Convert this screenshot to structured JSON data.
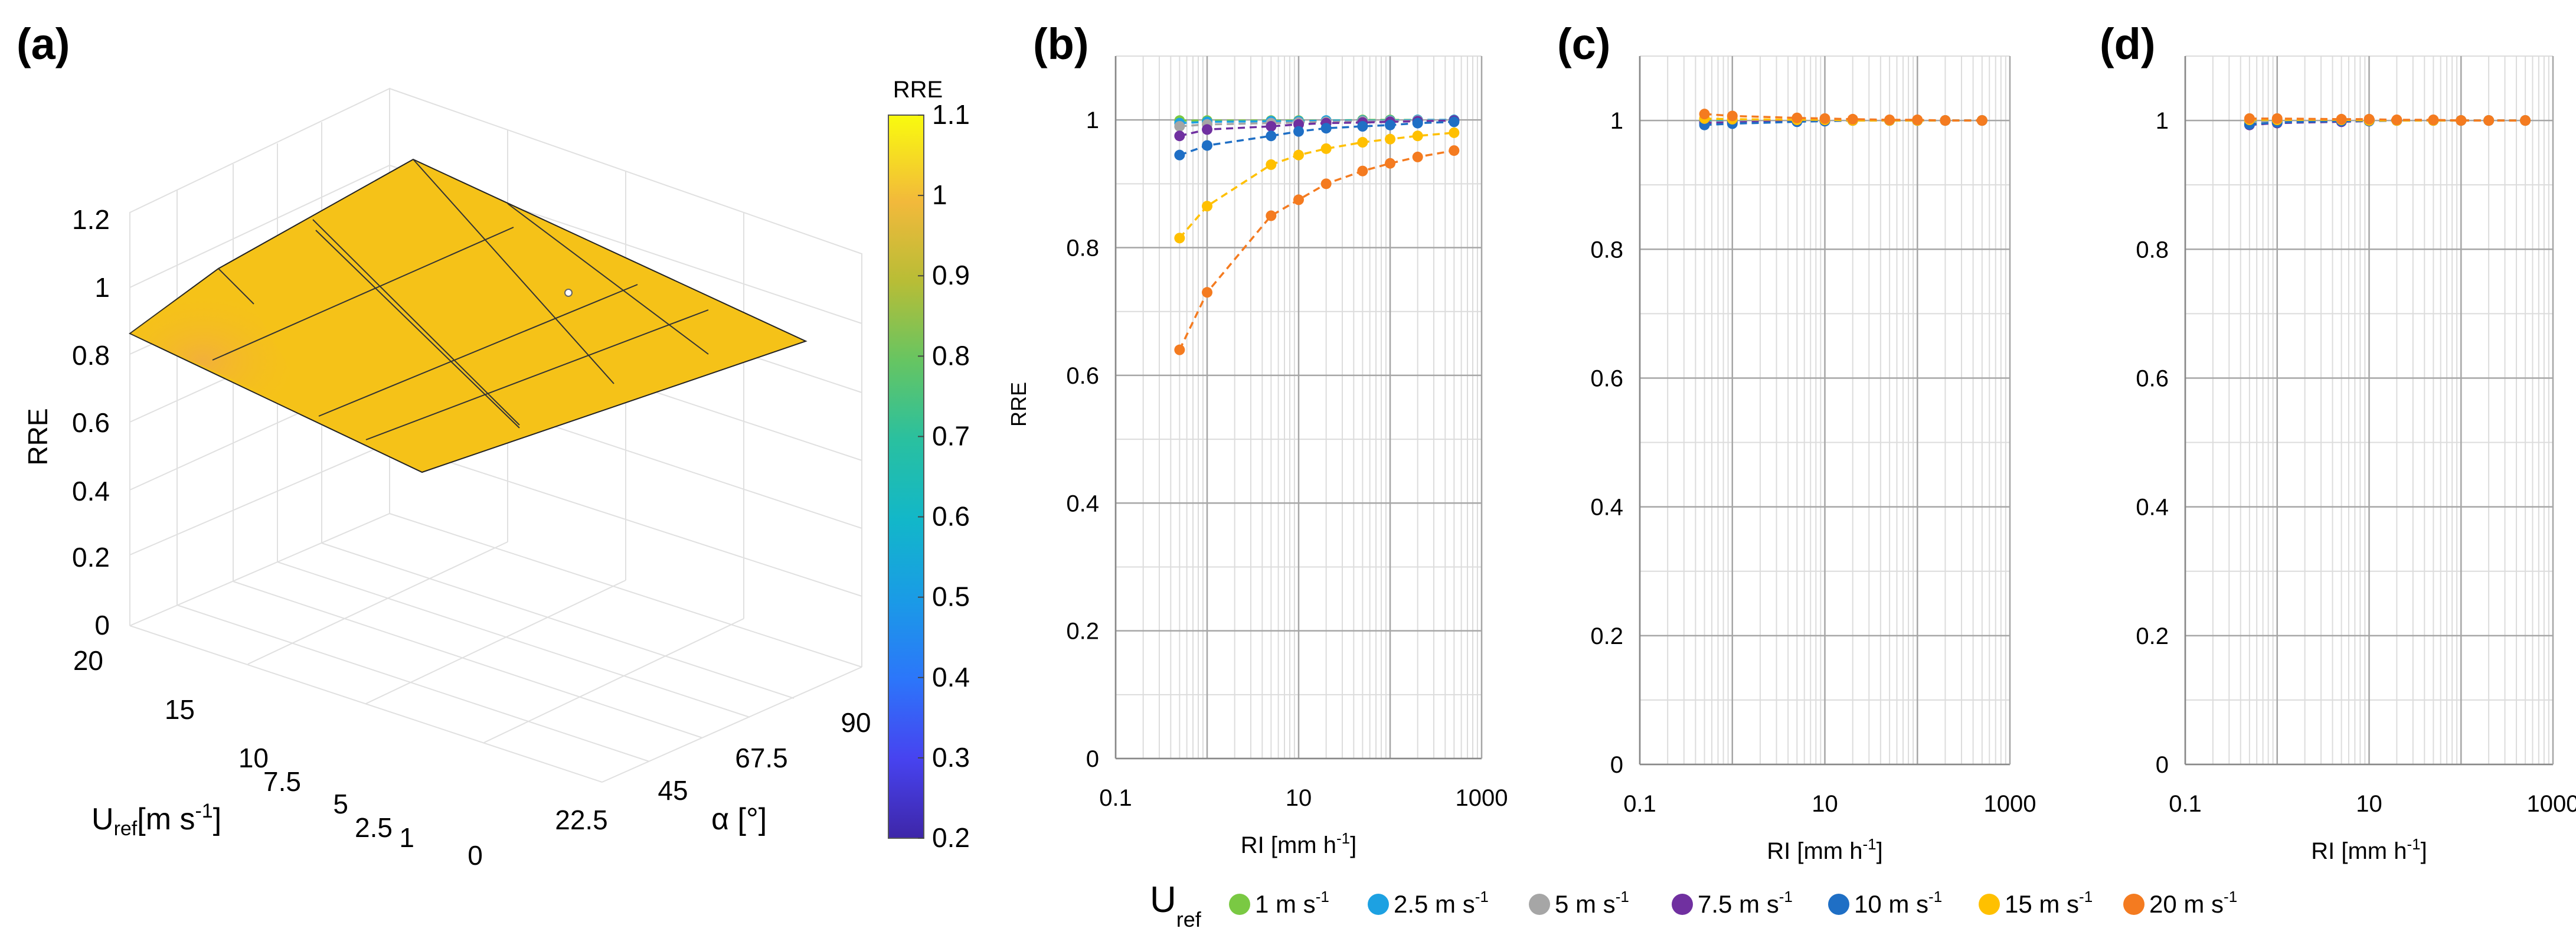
{
  "chart_data": [
    {
      "panel": "(a)",
      "type": "surface3d",
      "zlabel": "RRE",
      "ylabel": "U",
      "ylabel_sub": "ref",
      "ylabel_units": "[m  s",
      "ylabel_exp": "-1",
      "ylabel_close": "]",
      "xlabel": "α  [°]",
      "z_ticks": [
        "0",
        "0.2",
        "0.4",
        "0.6",
        "0.8",
        "1",
        "1.2"
      ],
      "u_ticks": [
        "20",
        "15",
        "10",
        "7.5",
        "5",
        "2.5",
        "1"
      ],
      "alpha_ticks": [
        "0",
        "22.5",
        "45",
        "67.5",
        "90"
      ],
      "surface_corner_values": {
        "u1_a0": 1.0,
        "u20_a0": 0.87,
        "u1_a90": 1.0,
        "u20_a90": 1.0
      },
      "colorbar": {
        "title": "RRE",
        "range": [
          0.2,
          1.1
        ],
        "ticks": [
          "1.1",
          "1",
          "0.9",
          "0.8",
          "0.7",
          "0.6",
          "0.5",
          "0.4",
          "0.3",
          "0.2"
        ]
      }
    },
    {
      "panel": "(b)",
      "type": "line",
      "xscale": "log",
      "xlim": [
        0.1,
        1000
      ],
      "ylim": [
        0,
        1.1
      ],
      "ylabel": "RRE",
      "xlabel": "RI [mm h",
      "xlabel_exp": "-1",
      "xlabel_close": "]",
      "x_ticks": [
        "0.1",
        "10",
        "1000"
      ],
      "y_ticks": [
        "0",
        "0.2",
        "0.4",
        "0.6",
        "0.8",
        "1"
      ],
      "x": [
        0.5,
        1,
        5,
        10,
        20,
        50,
        100,
        200,
        500
      ],
      "series": [
        {
          "name": "1 m s-1",
          "values": [
            0.999,
            0.999,
            0.999,
            0.999,
            0.999,
            1.0,
            1.0,
            1.0,
            1.0
          ]
        },
        {
          "name": "2.5 m s-1",
          "values": [
            0.995,
            0.997,
            0.998,
            0.998,
            0.999,
            0.999,
            0.999,
            1.0,
            1.0
          ]
        },
        {
          "name": "5 m s-1",
          "values": [
            0.99,
            0.993,
            0.995,
            0.996,
            0.997,
            0.998,
            0.998,
            0.999,
            0.999
          ]
        },
        {
          "name": "7.5 m s-1",
          "values": [
            0.975,
            0.985,
            0.99,
            0.993,
            0.995,
            0.996,
            0.997,
            0.998,
            0.999
          ]
        },
        {
          "name": "10 m s-1",
          "values": [
            0.945,
            0.96,
            0.975,
            0.982,
            0.987,
            0.99,
            0.992,
            0.995,
            0.997
          ]
        },
        {
          "name": "15 m s-1",
          "values": [
            0.815,
            0.865,
            0.93,
            0.945,
            0.955,
            0.965,
            0.97,
            0.975,
            0.98
          ]
        },
        {
          "name": "20 m s-1",
          "values": [
            0.64,
            0.73,
            0.85,
            0.875,
            0.9,
            0.92,
            0.932,
            0.942,
            0.952
          ]
        }
      ]
    },
    {
      "panel": "(c)",
      "type": "line",
      "xscale": "log",
      "xlim": [
        0.1,
        1000
      ],
      "ylim": [
        0,
        1.1
      ],
      "xlabel": "RI [mm h",
      "xlabel_exp": "-1",
      "xlabel_close": "]",
      "x_ticks": [
        "0.1",
        "10",
        "1000"
      ],
      "y_ticks": [
        "0",
        "0.2",
        "0.4",
        "0.6",
        "0.8",
        "1"
      ],
      "x": [
        0.5,
        1,
        5,
        10,
        20,
        50,
        100,
        200,
        500
      ],
      "series": [
        {
          "name": "1 m s-1",
          "values": [
            1.0,
            1.0,
            1.0,
            1.0,
            1.0,
            1.0,
            1.0,
            1.0,
            1.0
          ]
        },
        {
          "name": "2.5 m s-1",
          "values": [
            0.998,
            0.999,
            1.0,
            1.0,
            1.0,
            1.0,
            1.0,
            1.0,
            1.0
          ]
        },
        {
          "name": "5 m s-1",
          "values": [
            0.997,
            0.998,
            0.999,
            1.0,
            1.0,
            1.0,
            1.0,
            1.0,
            1.0
          ]
        },
        {
          "name": "7.5 m s-1",
          "values": [
            0.996,
            0.997,
            0.999,
            0.999,
            1.0,
            1.0,
            1.0,
            1.0,
            1.0
          ]
        },
        {
          "name": "10 m s-1",
          "values": [
            0.993,
            0.995,
            0.998,
            0.999,
            1.0,
            1.0,
            1.0,
            1.0,
            1.0
          ]
        },
        {
          "name": "15 m s-1",
          "values": [
            1.003,
            1.002,
            1.001,
            1.001,
            1.0,
            1.0,
            1.0,
            1.0,
            1.0
          ]
        },
        {
          "name": "20 m s-1",
          "values": [
            1.01,
            1.007,
            1.004,
            1.003,
            1.002,
            1.001,
            1.001,
            1.0,
            1.0
          ]
        }
      ]
    },
    {
      "panel": "(d)",
      "type": "line",
      "xscale": "log",
      "xlim": [
        0.1,
        1000
      ],
      "ylim": [
        0,
        1.1
      ],
      "xlabel": "RI [mm h",
      "xlabel_exp": "-1",
      "xlabel_close": "]",
      "x_ticks": [
        "0.1",
        "10",
        "1000"
      ],
      "y_ticks": [
        "0",
        "0.2",
        "0.4",
        "0.6",
        "0.8",
        "1"
      ],
      "x": [
        0.5,
        1,
        5,
        10,
        20,
        50,
        100,
        200,
        500
      ],
      "series": [
        {
          "name": "1 m s-1",
          "values": [
            1.0,
            1.0,
            1.0,
            1.0,
            1.0,
            1.0,
            1.0,
            1.0,
            1.0
          ]
        },
        {
          "name": "2.5 m s-1",
          "values": [
            0.998,
            0.999,
            1.0,
            1.0,
            1.0,
            1.0,
            1.0,
            1.0,
            1.0
          ]
        },
        {
          "name": "5 m s-1",
          "values": [
            0.997,
            0.998,
            0.999,
            1.0,
            1.0,
            1.0,
            1.0,
            1.0,
            1.0
          ]
        },
        {
          "name": "7.5 m s-1",
          "values": [
            0.993,
            0.996,
            0.998,
            0.999,
            1.0,
            1.0,
            1.0,
            1.0,
            1.0
          ]
        },
        {
          "name": "10 m s-1",
          "values": [
            0.994,
            0.997,
            0.999,
            0.999,
            1.0,
            1.0,
            1.0,
            1.0,
            1.0
          ]
        },
        {
          "name": "15 m s-1",
          "values": [
            1.001,
            1.001,
            1.001,
            1.0,
            1.0,
            1.0,
            1.0,
            1.0,
            1.0
          ]
        },
        {
          "name": "20 m s-1",
          "values": [
            1.003,
            1.003,
            1.002,
            1.002,
            1.001,
            1.001,
            1.0,
            1.0,
            1.0
          ]
        }
      ]
    }
  ],
  "legend": {
    "title": "U",
    "title_sub": "ref",
    "unit_prefix": "m s",
    "unit_exp": "-1",
    "items": [
      {
        "label": "1",
        "color": "#7AC943"
      },
      {
        "label": "2.5",
        "color": "#1DA1E2"
      },
      {
        "label": "5",
        "color": "#A6A6A6"
      },
      {
        "label": "7.5",
        "color": "#7030A0"
      },
      {
        "label": "10",
        "color": "#1F6FC5"
      },
      {
        "label": "15",
        "color": "#FFC000"
      },
      {
        "label": "20",
        "color": "#F47B20"
      }
    ]
  },
  "colors": {
    "surface": "#F5C218",
    "surface_warm": "#F2B43A",
    "grid": "#D9D9D9",
    "axis": "#000000"
  }
}
